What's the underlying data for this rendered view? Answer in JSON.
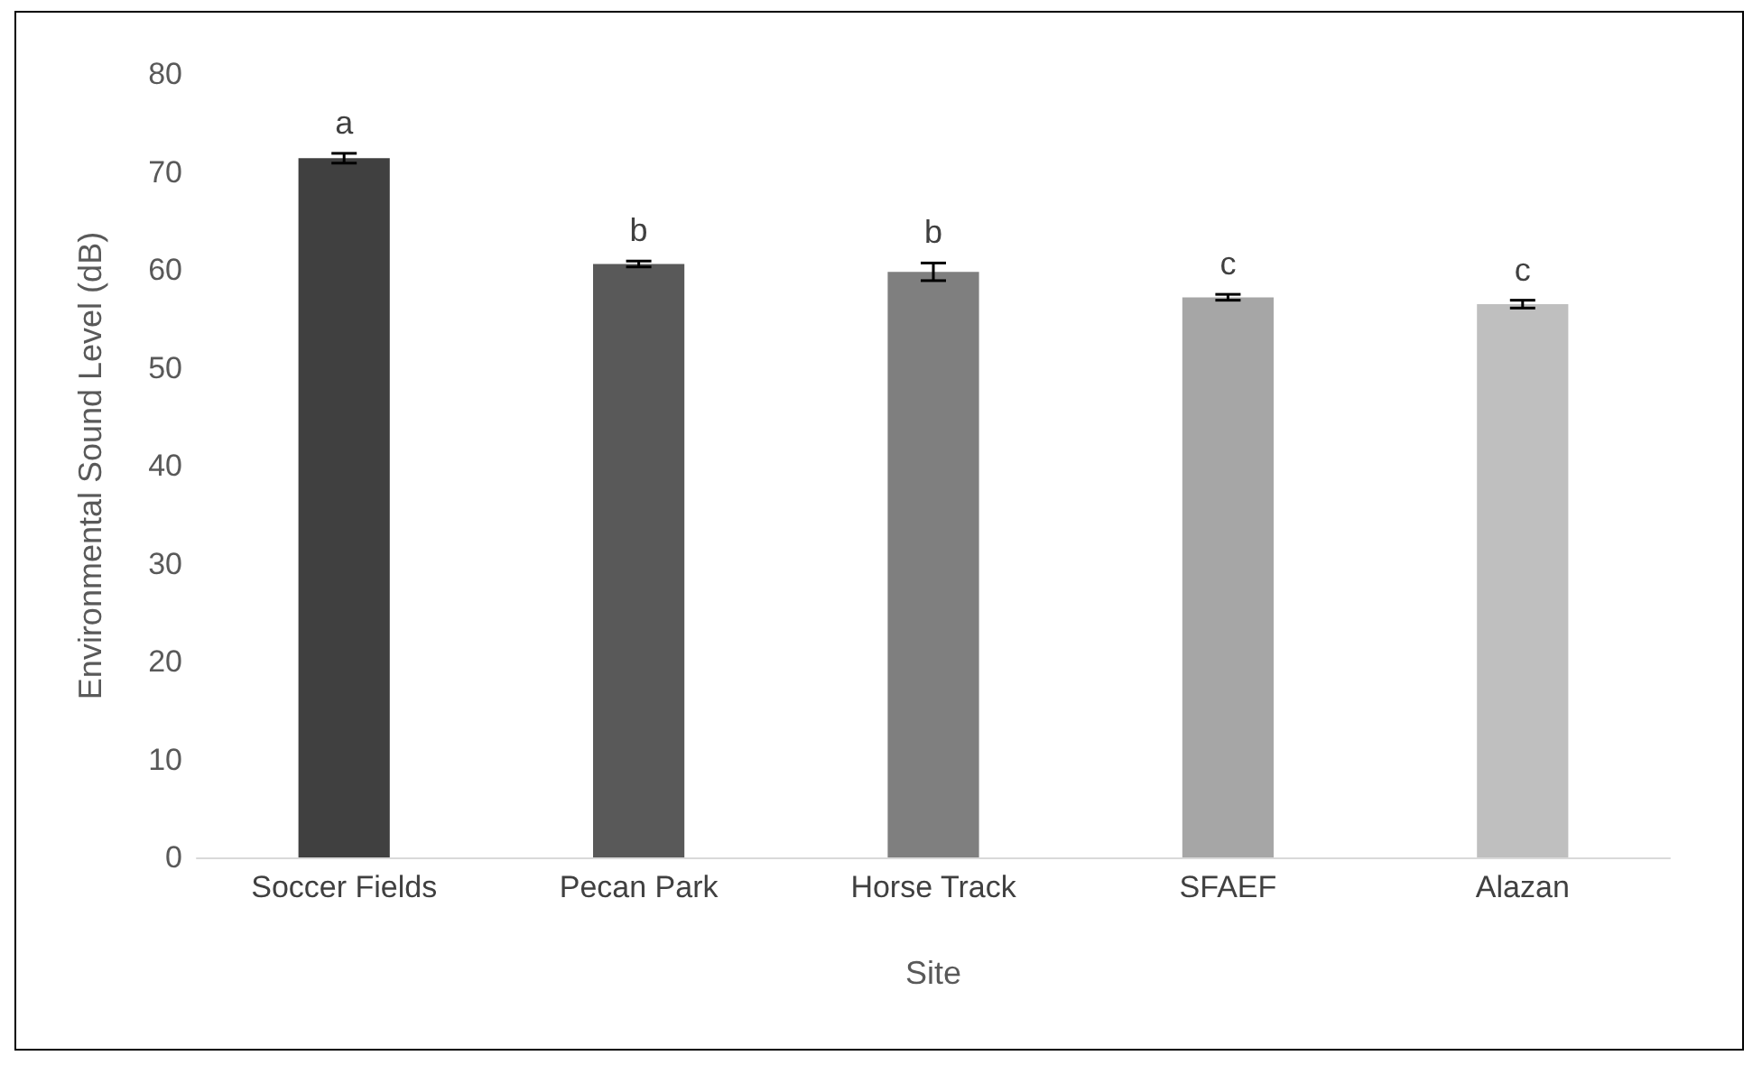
{
  "chart_data": {
    "type": "bar",
    "xlabel": "Site",
    "ylabel": "Environmental Sound Level (dB)",
    "categories": [
      "Soccer Fields",
      "Pecan Park",
      "Horse Track",
      "SFAEF",
      "Alazan"
    ],
    "values": [
      71.4,
      60.6,
      59.8,
      57.2,
      56.5
    ],
    "colors": [
      "#404040",
      "#595959",
      "#7f7f7f",
      "#a6a6a6",
      "#bfbfbf"
    ],
    "errors": [
      0.5,
      0.3,
      0.9,
      0.3,
      0.4
    ],
    "annotations": [
      {
        "text": "a",
        "x": "Soccer Fields",
        "y": 71.9
      },
      {
        "text": "b",
        "x": "Pecan Park",
        "y": 60.9
      },
      {
        "text": "b",
        "x": "Horse Track",
        "y": 60.7
      },
      {
        "text": "c",
        "x": "SFAEF",
        "y": 57.5
      },
      {
        "text": "c",
        "x": "Alazan",
        "y": 56.9
      }
    ],
    "ylim": [
      0,
      80
    ],
    "yticks": [
      0,
      10,
      20,
      30,
      40,
      50,
      60,
      70,
      80
    ],
    "grid": false
  }
}
